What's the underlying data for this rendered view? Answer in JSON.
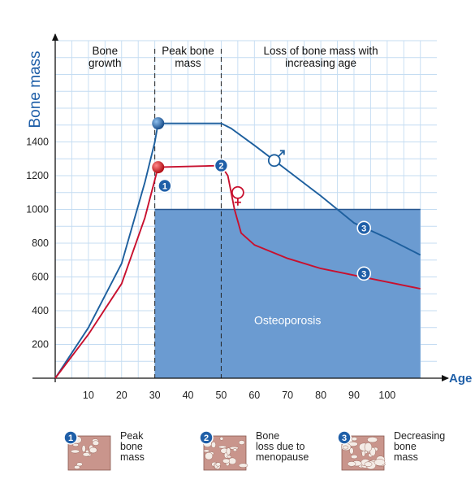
{
  "chart_data": {
    "type": "line",
    "xlabel": "Age",
    "ylabel": "Bone mass",
    "xlim": [
      0,
      113
    ],
    "ylim": [
      0,
      2000
    ],
    "x_ticks": [
      10,
      20,
      30,
      40,
      50,
      60,
      70,
      80,
      90,
      100
    ],
    "y_ticks": [
      200,
      400,
      600,
      800,
      1000,
      1200,
      1400
    ],
    "phases": [
      {
        "text": "Bone\ngrowth",
        "x_from": 0,
        "x_to": 30
      },
      {
        "text": "Peak bone\nmass",
        "x_from": 30,
        "x_to": 50
      },
      {
        "text": "Loss of bone mass with\nincreasing age",
        "x_from": 50,
        "x_to": 113
      }
    ],
    "series": [
      {
        "symbol": "♂",
        "color": "#1d5f9e",
        "x": [
          0,
          10,
          20,
          27,
          30,
          31,
          50,
          53,
          60,
          70,
          80,
          90,
          100,
          110
        ],
        "y": [
          0,
          300,
          680,
          1160,
          1400,
          1510,
          1510,
          1480,
          1380,
          1230,
          1080,
          920,
          830,
          730
        ]
      },
      {
        "symbol": "♀",
        "color": "#c8102e",
        "x": [
          0,
          10,
          20,
          27,
          31,
          50,
          52,
          54,
          56,
          60,
          70,
          80,
          90,
          100,
          110
        ],
        "y": [
          0,
          260,
          560,
          950,
          1250,
          1260,
          1200,
          1000,
          860,
          790,
          710,
          650,
          610,
          570,
          530
        ]
      }
    ],
    "osteoporosis_region": {
      "label": "Osteoporosis",
      "x_from": 30,
      "x_to": 110,
      "y_from": 0,
      "y_to": 1000,
      "color": "#6b9bd1"
    },
    "markers": [
      {
        "x": 31,
        "y": 1510,
        "type": "dot",
        "color": "#2a6fb8"
      },
      {
        "x": 31,
        "y": 1250,
        "type": "dot",
        "color": "#e21b23"
      },
      {
        "x": 33,
        "y": 1140,
        "type": "badge",
        "label": "1"
      },
      {
        "x": 50,
        "y": 1260,
        "type": "badge",
        "label": "2"
      },
      {
        "x": 93,
        "y": 890,
        "type": "badge",
        "label": "3"
      },
      {
        "x": 93,
        "y": 620,
        "type": "badge",
        "label": "3"
      }
    ],
    "grid": true
  },
  "legend": [
    {
      "badge": "1",
      "text": "Peak\nbone\nmass"
    },
    {
      "badge": "2",
      "text": "Bone\nloss due to\nmenopause"
    },
    {
      "badge": "3",
      "text": "Decreasing\nbone\nmass"
    }
  ]
}
